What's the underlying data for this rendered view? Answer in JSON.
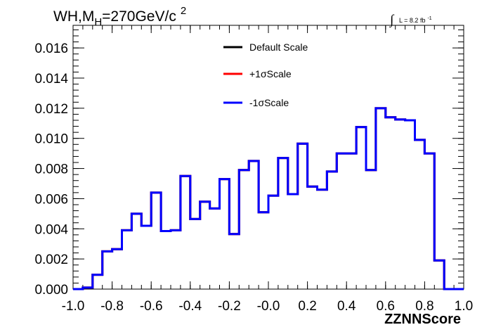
{
  "chart_data": {
    "type": "line",
    "style": "step-histogram",
    "title": {
      "main": "WH,M",
      "sub": "H",
      "rest": "=270GeV/c",
      "sup": "2"
    },
    "lumi": {
      "integral": "∫",
      "text": "L = 8.2 fb",
      "sup": "-1"
    },
    "xlabel": "ZZNNScore",
    "ylabel": "",
    "xlim": [
      -1.0,
      1.0
    ],
    "ylim": [
      0,
      0.0175
    ],
    "grid": false,
    "legend_position": "top-center",
    "x_ticks": [
      -1.0,
      -0.8,
      -0.6,
      -0.4,
      -0.2,
      0.0,
      0.2,
      0.4,
      0.6,
      0.8,
      1.0
    ],
    "x_tick_labels": [
      "-1.0",
      "-0.8",
      "-0.6",
      "-0.4",
      "-0.2",
      "-0.0",
      "0.2",
      "0.4",
      "0.6",
      "0.8",
      "1.0"
    ],
    "y_ticks": [
      0,
      0.002,
      0.004,
      0.006,
      0.008,
      0.01,
      0.012,
      0.014,
      0.016
    ],
    "y_tick_labels": [
      "0.000",
      "0.002",
      "0.004",
      "0.006",
      "0.008",
      "0.010",
      "0.012",
      "0.014",
      "0.016"
    ],
    "bin_edges": [
      -1.0,
      -0.95,
      -0.9,
      -0.85,
      -0.8,
      -0.75,
      -0.7,
      -0.65,
      -0.6,
      -0.55,
      -0.5,
      -0.45,
      -0.4,
      -0.35,
      -0.3,
      -0.25,
      -0.2,
      -0.15,
      -0.1,
      -0.05,
      0.0,
      0.05,
      0.1,
      0.15,
      0.2,
      0.25,
      0.3,
      0.35,
      0.4,
      0.45,
      0.5,
      0.55,
      0.6,
      0.65,
      0.7,
      0.75,
      0.8,
      0.85,
      0.9,
      0.95,
      1.0
    ],
    "series": [
      {
        "name": "Default Scale",
        "color": "#000000",
        "values": [
          0.0,
          0.0001,
          0.00095,
          0.0025,
          0.00265,
          0.0039,
          0.005,
          0.0042,
          0.0064,
          0.00385,
          0.0039,
          0.0075,
          0.00465,
          0.0058,
          0.00535,
          0.0073,
          0.00365,
          0.0079,
          0.0085,
          0.0051,
          0.0062,
          0.0087,
          0.0063,
          0.00965,
          0.0068,
          0.0066,
          0.0078,
          0.009,
          0.009,
          0.01075,
          0.0079,
          0.012,
          0.0114,
          0.01125,
          0.0112,
          0.0099,
          0.009,
          0.0019,
          0.0,
          0.0
        ]
      },
      {
        "name": "+1σScale",
        "color": "#ff0000",
        "values": [
          0.0,
          0.0001,
          0.00095,
          0.0025,
          0.00265,
          0.0039,
          0.005,
          0.0042,
          0.0064,
          0.00385,
          0.0039,
          0.0075,
          0.00465,
          0.0058,
          0.00535,
          0.0073,
          0.00365,
          0.0079,
          0.0085,
          0.0051,
          0.0062,
          0.0087,
          0.0063,
          0.00965,
          0.0068,
          0.0066,
          0.0078,
          0.009,
          0.009,
          0.01075,
          0.0079,
          0.012,
          0.0114,
          0.01125,
          0.0112,
          0.0099,
          0.009,
          0.0019,
          0.0,
          0.0
        ]
      },
      {
        "name": "-1σScale",
        "color": "#0000ff",
        "values": [
          0.0,
          0.0001,
          0.00095,
          0.0025,
          0.00265,
          0.0039,
          0.005,
          0.0042,
          0.0064,
          0.00385,
          0.0039,
          0.0075,
          0.00465,
          0.0058,
          0.00535,
          0.0073,
          0.00365,
          0.0079,
          0.0085,
          0.0051,
          0.0062,
          0.0087,
          0.0063,
          0.00965,
          0.0068,
          0.0066,
          0.0078,
          0.009,
          0.009,
          0.01075,
          0.0079,
          0.012,
          0.0114,
          0.01125,
          0.0112,
          0.0099,
          0.009,
          0.0019,
          0.0,
          0.0
        ]
      }
    ]
  }
}
